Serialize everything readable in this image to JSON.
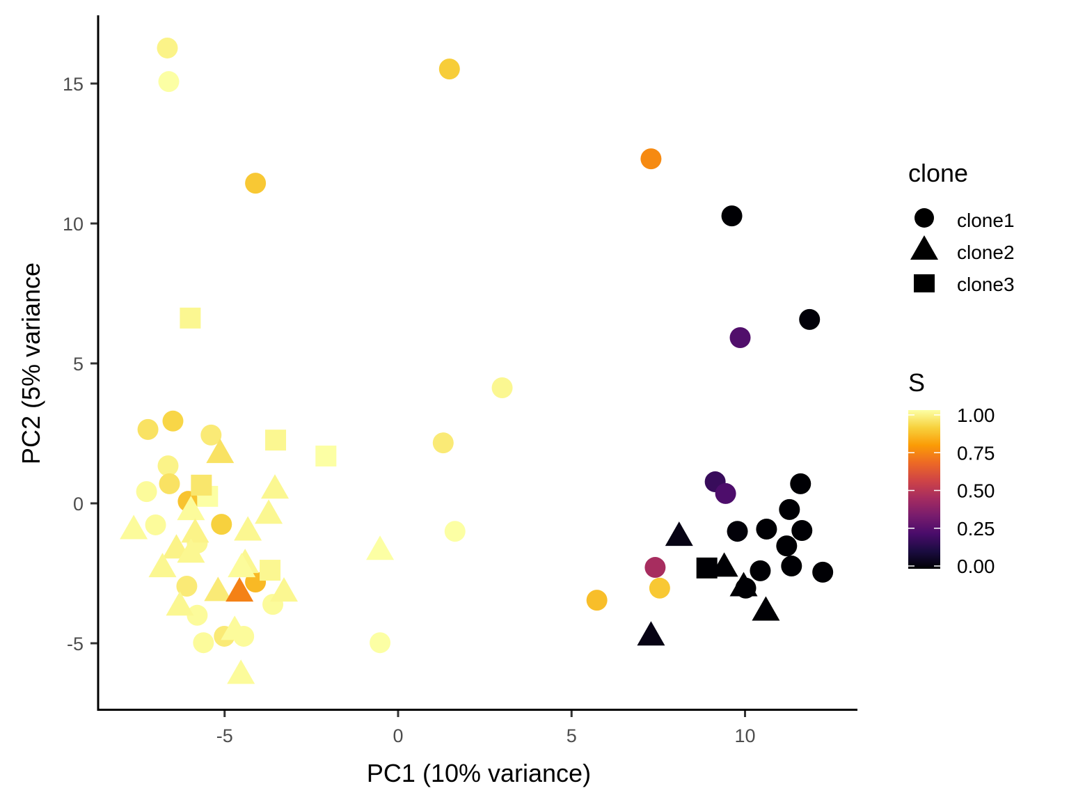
{
  "chart_data": {
    "type": "scatter",
    "title": "",
    "xlabel": "PC1 (10% variance)",
    "ylabel": "PC2 (5% variance",
    "xlim": [
      -8.6,
      13.3
    ],
    "ylim": [
      -7.4,
      17.4
    ],
    "xticks": [
      -5,
      0,
      5,
      10
    ],
    "yticks": [
      -5,
      0,
      5,
      10,
      15
    ],
    "xtick_labels": [
      "-5",
      "0",
      "5",
      "10"
    ],
    "ytick_labels": [
      "-5",
      "0",
      "5",
      "10",
      "15"
    ],
    "grid": false,
    "legend_placement": "right",
    "shape_legend": {
      "title": "clone",
      "entries": [
        {
          "label": "clone1",
          "shape": "circle"
        },
        {
          "label": "clone2",
          "shape": "triangle"
        },
        {
          "label": "clone3",
          "shape": "square"
        }
      ]
    },
    "color_legend": {
      "title": "S",
      "palette": "inferno",
      "range": [
        0,
        1
      ],
      "ticks": [
        1.0,
        0.75,
        0.5,
        0.25,
        0.0
      ],
      "tick_labels": [
        "1.00",
        "0.75",
        "0.50",
        "0.25",
        "0.00"
      ],
      "stops": [
        "#000004",
        "#1b0c41",
        "#4a0c6b",
        "#781c6d",
        "#a52c60",
        "#cf4446",
        "#ed6925",
        "#fb9b06",
        "#f7d13d",
        "#fcffa4"
      ]
    },
    "series": [
      {
        "name": "clone1",
        "shape": "circle",
        "points": [
          {
            "x": -6.65,
            "y": 16.27,
            "S": 0.97
          },
          {
            "x": -6.61,
            "y": 15.07,
            "S": 1.0
          },
          {
            "x": 1.48,
            "y": 15.52,
            "S": 0.88
          },
          {
            "x": -4.11,
            "y": 11.44,
            "S": 0.87
          },
          {
            "x": 7.29,
            "y": 12.31,
            "S": 0.74
          },
          {
            "x": 9.62,
            "y": 10.27,
            "S": 0.0
          },
          {
            "x": 11.86,
            "y": 6.57,
            "S": 0.01
          },
          {
            "x": 9.86,
            "y": 5.92,
            "S": 0.24
          },
          {
            "x": 3.0,
            "y": 4.13,
            "S": 0.98
          },
          {
            "x": -6.49,
            "y": 2.94,
            "S": 0.9
          },
          {
            "x": -7.21,
            "y": 2.64,
            "S": 0.93
          },
          {
            "x": -5.39,
            "y": 2.44,
            "S": 0.95
          },
          {
            "x": 1.3,
            "y": 2.16,
            "S": 0.95
          },
          {
            "x": -6.63,
            "y": 1.34,
            "S": 0.97
          },
          {
            "x": -6.59,
            "y": 0.7,
            "S": 0.93
          },
          {
            "x": -7.25,
            "y": 0.42,
            "S": 0.99
          },
          {
            "x": -6.05,
            "y": 0.07,
            "S": 0.86
          },
          {
            "x": 9.14,
            "y": 0.77,
            "S": 0.18
          },
          {
            "x": 9.44,
            "y": 0.35,
            "S": 0.23
          },
          {
            "x": 11.6,
            "y": 0.7,
            "S": 0.0
          },
          {
            "x": 11.28,
            "y": -0.22,
            "S": 0.0
          },
          {
            "x": -6.99,
            "y": -0.77,
            "S": 0.99
          },
          {
            "x": -5.09,
            "y": -0.75,
            "S": 0.89
          },
          {
            "x": 1.64,
            "y": -1.0,
            "S": 1.0
          },
          {
            "x": 9.78,
            "y": -1.0,
            "S": 0.01
          },
          {
            "x": 10.62,
            "y": -0.92,
            "S": 0.0
          },
          {
            "x": 11.64,
            "y": -0.97,
            "S": 0.0
          },
          {
            "x": 11.2,
            "y": -1.52,
            "S": 0.0
          },
          {
            "x": -5.79,
            "y": -1.42,
            "S": 0.98
          },
          {
            "x": -4.11,
            "y": -2.81,
            "S": 0.84
          },
          {
            "x": -6.09,
            "y": -2.96,
            "S": 0.95
          },
          {
            "x": 7.41,
            "y": -2.29,
            "S": 0.45
          },
          {
            "x": 11.34,
            "y": -2.24,
            "S": 0.0
          },
          {
            "x": 12.24,
            "y": -2.46,
            "S": 0.0
          },
          {
            "x": 10.44,
            "y": -2.41,
            "S": 0.0
          },
          {
            "x": 10.02,
            "y": -3.03,
            "S": 0.0
          },
          {
            "x": 7.54,
            "y": -3.03,
            "S": 0.87
          },
          {
            "x": 5.73,
            "y": -3.46,
            "S": 0.85
          },
          {
            "x": -3.61,
            "y": -3.61,
            "S": 0.99
          },
          {
            "x": -5.79,
            "y": -4.0,
            "S": 0.99
          },
          {
            "x": -5.01,
            "y": -4.75,
            "S": 0.95
          },
          {
            "x": -4.45,
            "y": -4.75,
            "S": 0.99
          },
          {
            "x": -5.61,
            "y": -4.98,
            "S": 0.99
          },
          {
            "x": -0.52,
            "y": -4.98,
            "S": 1.0
          }
        ]
      },
      {
        "name": "clone2",
        "shape": "triangle",
        "points": [
          {
            "x": -5.13,
            "y": 1.77,
            "S": 0.93
          },
          {
            "x": -3.55,
            "y": 0.5,
            "S": 0.98
          },
          {
            "x": -3.73,
            "y": -0.4,
            "S": 0.98
          },
          {
            "x": -5.97,
            "y": -0.27,
            "S": 0.99
          },
          {
            "x": -7.62,
            "y": -0.95,
            "S": 0.99
          },
          {
            "x": -5.85,
            "y": -1.07,
            "S": 0.97
          },
          {
            "x": -4.33,
            "y": -1.0,
            "S": 0.98
          },
          {
            "x": -0.52,
            "y": -1.69,
            "S": 1.0
          },
          {
            "x": -6.39,
            "y": -1.64,
            "S": 0.97
          },
          {
            "x": -5.97,
            "y": -1.79,
            "S": 0.98
          },
          {
            "x": -6.79,
            "y": -2.31,
            "S": 0.98
          },
          {
            "x": -4.41,
            "y": -2.16,
            "S": 0.98
          },
          {
            "x": -4.51,
            "y": -2.31,
            "S": 0.99
          },
          {
            "x": 8.1,
            "y": -1.19,
            "S": 0.03
          },
          {
            "x": 9.4,
            "y": -2.29,
            "S": 0.0
          },
          {
            "x": 9.96,
            "y": -2.99,
            "S": 0.0
          },
          {
            "x": 10.6,
            "y": -3.86,
            "S": 0.0
          },
          {
            "x": 7.29,
            "y": -4.75,
            "S": 0.03
          },
          {
            "x": -5.19,
            "y": -3.16,
            "S": 0.95
          },
          {
            "x": -4.57,
            "y": -3.18,
            "S": 0.72
          },
          {
            "x": -3.29,
            "y": -3.18,
            "S": 0.98
          },
          {
            "x": -6.29,
            "y": -3.68,
            "S": 0.98
          },
          {
            "x": -4.71,
            "y": -4.55,
            "S": 0.99
          },
          {
            "x": -4.53,
            "y": -6.12,
            "S": 0.99
          }
        ]
      },
      {
        "name": "clone3",
        "shape": "square",
        "points": [
          {
            "x": -5.99,
            "y": 6.62,
            "S": 0.98
          },
          {
            "x": -3.53,
            "y": 2.26,
            "S": 0.98
          },
          {
            "x": -2.08,
            "y": 1.69,
            "S": 1.0
          },
          {
            "x": -5.49,
            "y": 0.25,
            "S": 1.0
          },
          {
            "x": -5.67,
            "y": 0.65,
            "S": 0.94
          },
          {
            "x": -3.69,
            "y": -2.39,
            "S": 0.98
          },
          {
            "x": 8.9,
            "y": -2.31,
            "S": 0.0
          }
        ]
      }
    ]
  }
}
